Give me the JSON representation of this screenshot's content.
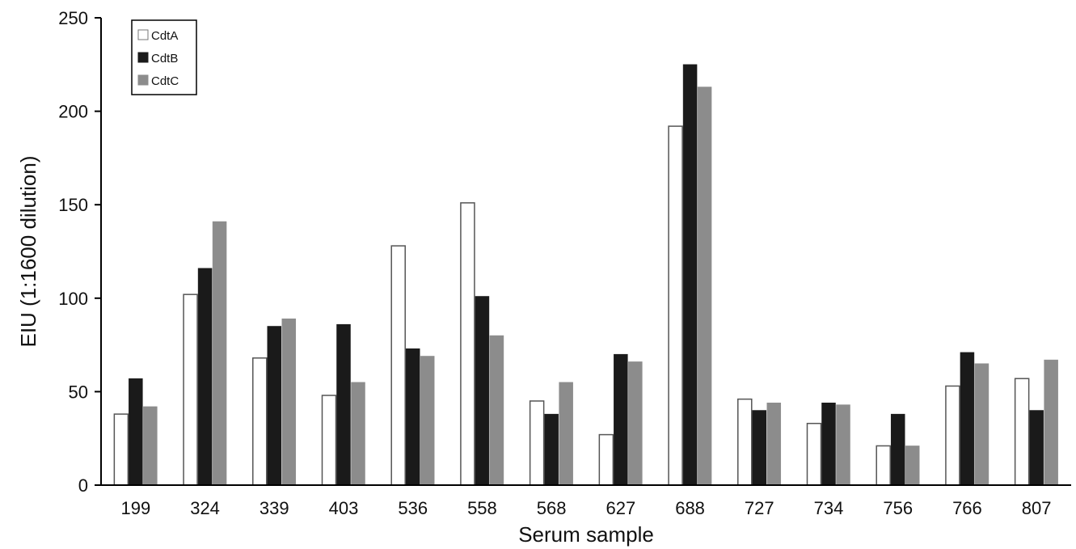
{
  "chart_data": {
    "type": "bar",
    "title": "",
    "xlabel": "Serum sample",
    "ylabel": "EIU (1:1600 dilution)",
    "ylim": [
      0,
      250
    ],
    "yticks": [
      0,
      50,
      100,
      150,
      200,
      250
    ],
    "grid": false,
    "legend_position": "top-left",
    "categories": [
      "199",
      "324",
      "339",
      "403",
      "536",
      "558",
      "568",
      "627",
      "688",
      "727",
      "734",
      "756",
      "766",
      "807"
    ],
    "series": [
      {
        "name": "CdtA",
        "color": "#ffffff",
        "values": [
          38,
          102,
          68,
          48,
          128,
          151,
          45,
          27,
          192,
          46,
          33,
          21,
          53,
          57
        ]
      },
      {
        "name": "CdtB",
        "color": "#1a1a1a",
        "values": [
          57,
          116,
          85,
          86,
          73,
          101,
          38,
          70,
          225,
          40,
          44,
          38,
          71,
          40
        ]
      },
      {
        "name": "CdtC",
        "color": "#8c8c8c",
        "values": [
          42,
          141,
          89,
          55,
          69,
          80,
          55,
          66,
          213,
          44,
          43,
          21,
          65,
          67
        ]
      }
    ]
  }
}
